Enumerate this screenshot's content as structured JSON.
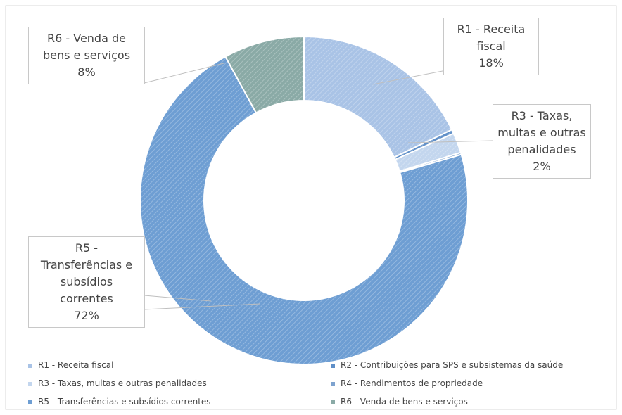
{
  "chart_data": {
    "type": "pie",
    "donut": true,
    "categories": [
      "R1 - Receita fiscal",
      "R2 - Contribuições para SPS e subsistemas da saúde",
      "R3 - Taxas, multas e outras penalidades",
      "R4 - Rendimentos de propriedade",
      "R5 - Transferências e subsídios correntes",
      "R6 - Venda de bens e serviços"
    ],
    "values": [
      18,
      0.4,
      2,
      0.2,
      72,
      8
    ],
    "value_labels": [
      "18%",
      null,
      "2%",
      null,
      "72%",
      "8%"
    ],
    "colors": [
      "#a9c3e6",
      "#5f8fc8",
      "#c3d6ee",
      "#7ea3cf",
      "#6e9ed3",
      "#8aaaa6"
    ]
  }
}
